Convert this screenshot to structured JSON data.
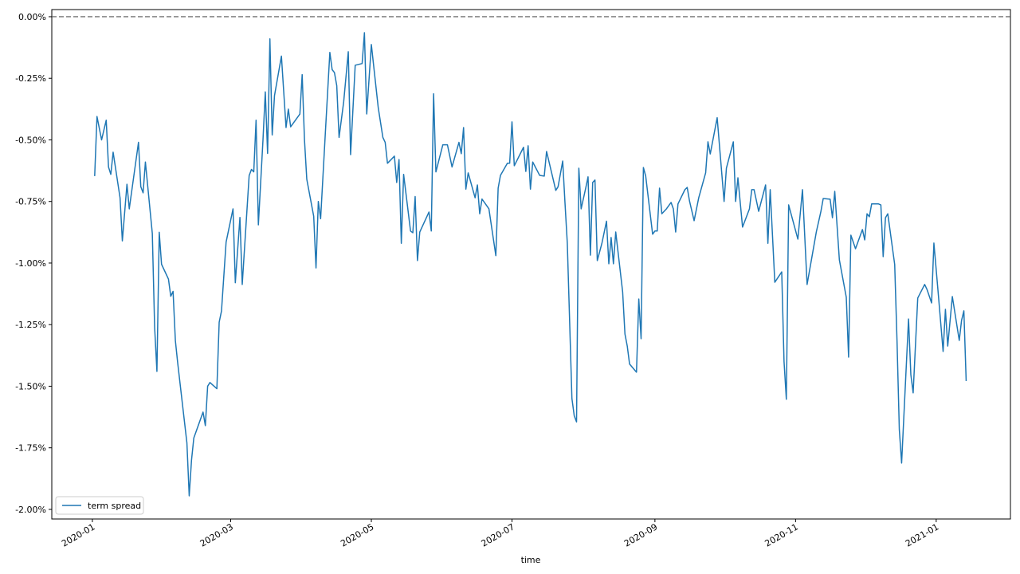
{
  "chart_data": {
    "type": "line",
    "xlabel": "time",
    "x": [
      1,
      2,
      4,
      6,
      7,
      8,
      9,
      12,
      13,
      15,
      16,
      20,
      21,
      22,
      23,
      26,
      27,
      28,
      29,
      30,
      33,
      34,
      35,
      36,
      37,
      41,
      42,
      43,
      44,
      48,
      49,
      50,
      51,
      54,
      55,
      56,
      58,
      61,
      62,
      64,
      65,
      68,
      69,
      70,
      71,
      72,
      74,
      75,
      76,
      77,
      78,
      79,
      82,
      84,
      85,
      86,
      90,
      91,
      92,
      93,
      96,
      97,
      98,
      99,
      101,
      103,
      104,
      105,
      106,
      107,
      109,
      111,
      112,
      114,
      117,
      118,
      119,
      121,
      124,
      126,
      127,
      128,
      131,
      132,
      133,
      134,
      135,
      138,
      139,
      140,
      141,
      142,
      146,
      147,
      148,
      149,
      152,
      154,
      156,
      159,
      160,
      161,
      162,
      163,
      166,
      167,
      168,
      169,
      172,
      175,
      176,
      177,
      180,
      181,
      182,
      183,
      187,
      188,
      189,
      190,
      191,
      194,
      196,
      197,
      201,
      202,
      204,
      205,
      206,
      208,
      209,
      210,
      211,
      212,
      214,
      215,
      216,
      217,
      218,
      219,
      221,
      223,
      224,
      225,
      226,
      227,
      230,
      231,
      232,
      233,
      236,
      237,
      238,
      239,
      240,
      243,
      244,
      245,
      246,
      247,
      249,
      251,
      252,
      253,
      254,
      257,
      258,
      259,
      261,
      263,
      266,
      267,
      268,
      271,
      274,
      275,
      278,
      279,
      280,
      282,
      285,
      286,
      287,
      289,
      292,
      293,
      294,
      296,
      299,
      300,
      301,
      302,
      306,
      308,
      310,
      314,
      316,
      317,
      320,
      321,
      322,
      324,
      327,
      328,
      329,
      331,
      334,
      335,
      336,
      337,
      338,
      341,
      342,
      343,
      344,
      345,
      348,
      349,
      350,
      351,
      354,
      355,
      356,
      358,
      361,
      362,
      364,
      365,
      367,
      369,
      370,
      371,
      373,
      376,
      377,
      378,
      379
    ],
    "series": [
      {
        "name": "term spread",
        "color": "#1f77b4",
        "values": [
          -0.647,
          -0.405,
          -0.5,
          -0.42,
          -0.61,
          -0.64,
          -0.55,
          -0.735,
          -0.91,
          -0.68,
          -0.78,
          -0.51,
          -0.69,
          -0.715,
          -0.59,
          -0.88,
          -1.26,
          -1.44,
          -0.875,
          -1.005,
          -1.065,
          -1.135,
          -1.115,
          -1.315,
          -1.405,
          -1.73,
          -1.945,
          -1.8,
          -1.71,
          -1.605,
          -1.66,
          -1.5,
          -1.485,
          -1.51,
          -1.24,
          -1.195,
          -0.915,
          -0.78,
          -1.08,
          -0.815,
          -1.087,
          -0.645,
          -0.62,
          -0.63,
          -0.42,
          -0.845,
          -0.5,
          -0.305,
          -0.555,
          -0.09,
          -0.48,
          -0.32,
          -0.16,
          -0.45,
          -0.375,
          -0.447,
          -0.395,
          -0.235,
          -0.5,
          -0.66,
          -0.81,
          -1.02,
          -0.75,
          -0.82,
          -0.48,
          -0.145,
          -0.215,
          -0.227,
          -0.28,
          -0.49,
          -0.346,
          -0.142,
          -0.56,
          -0.197,
          -0.19,
          -0.065,
          -0.395,
          -0.113,
          -0.37,
          -0.49,
          -0.51,
          -0.595,
          -0.566,
          -0.673,
          -0.58,
          -0.92,
          -0.64,
          -0.87,
          -0.877,
          -0.73,
          -0.99,
          -0.874,
          -0.793,
          -0.87,
          -0.313,
          -0.63,
          -0.52,
          -0.52,
          -0.61,
          -0.51,
          -0.556,
          -0.45,
          -0.7,
          -0.634,
          -0.735,
          -0.683,
          -0.8,
          -0.74,
          -0.78,
          -0.97,
          -0.696,
          -0.644,
          -0.595,
          -0.595,
          -0.427,
          -0.605,
          -0.53,
          -0.628,
          -0.524,
          -0.7,
          -0.59,
          -0.644,
          -0.647,
          -0.547,
          -0.705,
          -0.69,
          -0.586,
          -0.757,
          -0.92,
          -1.55,
          -1.62,
          -1.645,
          -0.615,
          -0.78,
          -0.695,
          -0.65,
          -0.968,
          -0.673,
          -0.663,
          -0.99,
          -0.92,
          -0.83,
          -1.003,
          -0.896,
          -1.003,
          -0.874,
          -1.117,
          -1.288,
          -1.337,
          -1.41,
          -1.443,
          -1.146,
          -1.307,
          -0.612,
          -0.647,
          -0.883,
          -0.87,
          -0.87,
          -0.696,
          -0.8,
          -0.78,
          -0.754,
          -0.78,
          -0.874,
          -0.76,
          -0.702,
          -0.693,
          -0.748,
          -0.828,
          -0.735,
          -0.634,
          -0.508,
          -0.557,
          -0.41,
          -0.75,
          -0.615,
          -0.508,
          -0.75,
          -0.654,
          -0.854,
          -0.78,
          -0.702,
          -0.702,
          -0.79,
          -0.683,
          -0.92,
          -0.702,
          -1.078,
          -1.036,
          -1.4,
          -1.553,
          -0.764,
          -0.903,
          -0.702,
          -1.087,
          -0.874,
          -0.79,
          -0.738,
          -0.741,
          -0.816,
          -0.709,
          -0.987,
          -1.139,
          -1.382,
          -0.887,
          -0.942,
          -0.864,
          -0.906,
          -0.8,
          -0.812,
          -0.76,
          -0.76,
          -0.764,
          -0.974,
          -0.816,
          -0.8,
          -1.006,
          -1.314,
          -1.676,
          -1.812,
          -1.227,
          -1.453,
          -1.527,
          -1.142,
          -1.087,
          -1.107,
          -1.162,
          -0.919,
          -1.136,
          -1.359,
          -1.188,
          -1.337,
          -1.136,
          -1.314,
          -1.233,
          -1.194,
          -1.479
        ]
      }
    ],
    "xlim": [
      -17.6,
      398.2
    ],
    "ylim": [
      -2.039,
      0.029
    ],
    "xticks": [
      {
        "value": 0,
        "label": "2020-01"
      },
      {
        "value": 60,
        "label": "2020-03"
      },
      {
        "value": 121,
        "label": "2020-05"
      },
      {
        "value": 182,
        "label": "2020-07"
      },
      {
        "value": 244,
        "label": "2020-09"
      },
      {
        "value": 305,
        "label": "2020-11"
      },
      {
        "value": 366,
        "label": "2021-01"
      }
    ],
    "yticks": [
      {
        "value": 0,
        "label": "0.00%"
      },
      {
        "value": -0.25,
        "label": "-0.25%"
      },
      {
        "value": -0.5,
        "label": "-0.50%"
      },
      {
        "value": -0.75,
        "label": "-0.75%"
      },
      {
        "value": -1,
        "label": "-1.00%"
      },
      {
        "value": -1.25,
        "label": "-1.25%"
      },
      {
        "value": -1.5,
        "label": "-1.50%"
      },
      {
        "value": -1.75,
        "label": "-1.75%"
      },
      {
        "value": -2,
        "label": "-2.00%"
      }
    ],
    "hline": {
      "value": 0,
      "color": "#555555"
    },
    "legend": "lower left"
  }
}
